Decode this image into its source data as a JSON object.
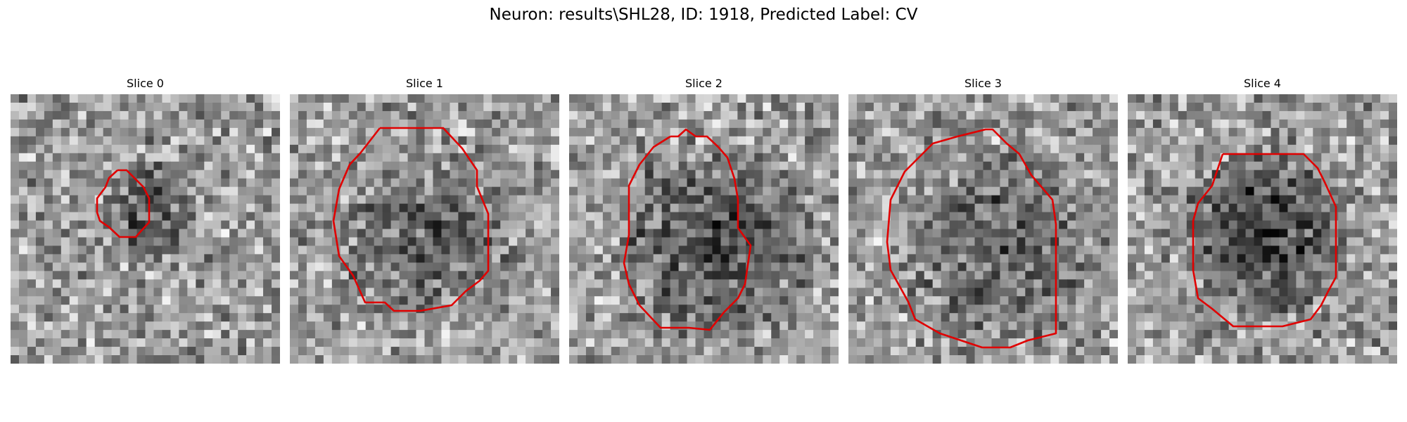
{
  "figure": {
    "title": "Neuron: results\\SHL28, ID: 1918, Predicted Label: CV"
  },
  "colors": {
    "contour": "#e00000",
    "background": "#ffffff"
  },
  "slices": [
    {
      "title": "Slice 0"
    },
    {
      "title": "Slice 1"
    },
    {
      "title": "Slice 2"
    },
    {
      "title": "Slice 3"
    },
    {
      "title": "Slice 4"
    }
  ]
}
